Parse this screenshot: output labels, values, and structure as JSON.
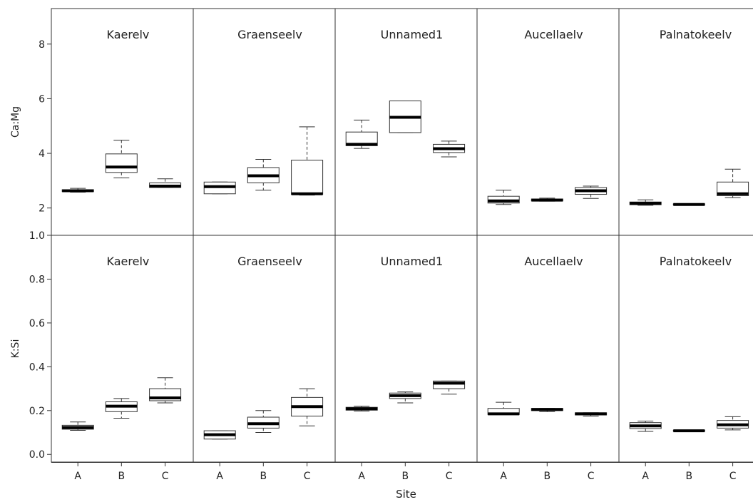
{
  "chart_data": {
    "type": "boxplot",
    "xlabel": "Site",
    "categories": [
      "A",
      "B",
      "C"
    ],
    "panels": [
      "Kaerelv",
      "Graenseelv",
      "Unnamed1",
      "Aucellaelv",
      "Palnatokeelv"
    ],
    "rows": [
      {
        "ylabel": "Ca:Mg",
        "ylim": [
          1.0,
          9.3
        ],
        "yticks": [
          2,
          4,
          6,
          8
        ],
        "ytick_labels": [
          "2",
          "4",
          "6",
          "8"
        ],
        "panels": [
          {
            "name": "Kaerelv",
            "boxes": [
              {
                "site": "A",
                "min": 2.58,
                "q1": 2.6,
                "median": 2.63,
                "q3": 2.67,
                "max": 2.72
              },
              {
                "site": "B",
                "min": 3.1,
                "q1": 3.3,
                "median": 3.5,
                "q3": 3.98,
                "max": 4.48
              },
              {
                "site": "C",
                "min": 2.75,
                "q1": 2.75,
                "median": 2.8,
                "q3": 2.92,
                "max": 3.07
              }
            ]
          },
          {
            "name": "Graenseelv",
            "boxes": [
              {
                "site": "A",
                "min": 2.52,
                "q1": 2.52,
                "median": 2.78,
                "q3": 2.95,
                "max": 2.95
              },
              {
                "site": "B",
                "min": 2.65,
                "q1": 2.92,
                "median": 3.18,
                "q3": 3.48,
                "max": 3.78
              },
              {
                "site": "C",
                "min": 2.47,
                "q1": 2.5,
                "median": 2.52,
                "q3": 3.75,
                "max": 4.97
              }
            ]
          },
          {
            "name": "Unnamed1",
            "boxes": [
              {
                "site": "A",
                "min": 4.18,
                "q1": 4.28,
                "median": 4.33,
                "q3": 4.78,
                "max": 5.22
              },
              {
                "site": "B",
                "min": 4.76,
                "q1": 4.76,
                "median": 5.32,
                "q3": 5.92,
                "max": 5.92
              },
              {
                "site": "C",
                "min": 3.87,
                "q1": 4.03,
                "median": 4.17,
                "q3": 4.33,
                "max": 4.45
              }
            ]
          },
          {
            "name": "Aucellaelv",
            "boxes": [
              {
                "site": "A",
                "min": 2.13,
                "q1": 2.18,
                "median": 2.26,
                "q3": 2.43,
                "max": 2.65
              },
              {
                "site": "B",
                "min": 2.25,
                "q1": 2.26,
                "median": 2.29,
                "q3": 2.33,
                "max": 2.36
              },
              {
                "site": "C",
                "min": 2.35,
                "q1": 2.5,
                "median": 2.63,
                "q3": 2.75,
                "max": 2.8
              }
            ]
          },
          {
            "name": "Palnatokeelv",
            "boxes": [
              {
                "site": "A",
                "min": 2.1,
                "q1": 2.12,
                "median": 2.17,
                "q3": 2.22,
                "max": 2.3
              },
              {
                "site": "B",
                "min": 2.1,
                "q1": 2.11,
                "median": 2.13,
                "q3": 2.15,
                "max": 2.16
              },
              {
                "site": "C",
                "min": 2.38,
                "q1": 2.45,
                "median": 2.52,
                "q3": 2.95,
                "max": 3.42
              }
            ]
          }
        ]
      },
      {
        "ylabel": "K:Si",
        "ylim": [
          -0.035,
          1.0
        ],
        "yticks": [
          0.0,
          0.2,
          0.4,
          0.6,
          0.8,
          1.0
        ],
        "ytick_labels": [
          "0.0",
          "0.2",
          "0.4",
          "0.6",
          "0.8",
          "1.0"
        ],
        "panels": [
          {
            "name": "Kaerelv",
            "boxes": [
              {
                "site": "A",
                "min": 0.11,
                "q1": 0.115,
                "median": 0.123,
                "q3": 0.133,
                "max": 0.148
              },
              {
                "site": "B",
                "min": 0.165,
                "q1": 0.195,
                "median": 0.22,
                "q3": 0.24,
                "max": 0.255
              },
              {
                "site": "C",
                "min": 0.235,
                "q1": 0.245,
                "median": 0.258,
                "q3": 0.3,
                "max": 0.35
              }
            ]
          },
          {
            "name": "Graenseelv",
            "boxes": [
              {
                "site": "A",
                "min": 0.07,
                "q1": 0.07,
                "median": 0.09,
                "q3": 0.108,
                "max": 0.108
              },
              {
                "site": "B",
                "min": 0.1,
                "q1": 0.12,
                "median": 0.14,
                "q3": 0.17,
                "max": 0.2
              },
              {
                "site": "C",
                "min": 0.13,
                "q1": 0.175,
                "median": 0.218,
                "q3": 0.26,
                "max": 0.3
              }
            ]
          },
          {
            "name": "Unnamed1",
            "boxes": [
              {
                "site": "A",
                "min": 0.198,
                "q1": 0.202,
                "median": 0.208,
                "q3": 0.215,
                "max": 0.22
              },
              {
                "site": "B",
                "min": 0.235,
                "q1": 0.255,
                "median": 0.268,
                "q3": 0.28,
                "max": 0.285
              },
              {
                "site": "C",
                "min": 0.275,
                "q1": 0.3,
                "median": 0.325,
                "q3": 0.335,
                "max": 0.335
              }
            ]
          },
          {
            "name": "Aucellaelv",
            "boxes": [
              {
                "site": "A",
                "min": 0.182,
                "q1": 0.182,
                "median": 0.185,
                "q3": 0.21,
                "max": 0.238
              },
              {
                "site": "B",
                "min": 0.195,
                "q1": 0.2,
                "median": 0.205,
                "q3": 0.21,
                "max": 0.21
              },
              {
                "site": "C",
                "min": 0.175,
                "q1": 0.18,
                "median": 0.185,
                "q3": 0.19,
                "max": 0.19
              }
            ]
          },
          {
            "name": "Palnatokeelv",
            "boxes": [
              {
                "site": "A",
                "min": 0.105,
                "q1": 0.118,
                "median": 0.13,
                "q3": 0.145,
                "max": 0.152
              },
              {
                "site": "B",
                "min": 0.105,
                "q1": 0.106,
                "median": 0.108,
                "q3": 0.11,
                "max": 0.11
              },
              {
                "site": "C",
                "min": 0.112,
                "q1": 0.12,
                "median": 0.135,
                "q3": 0.155,
                "max": 0.172
              }
            ]
          }
        ]
      }
    ]
  }
}
